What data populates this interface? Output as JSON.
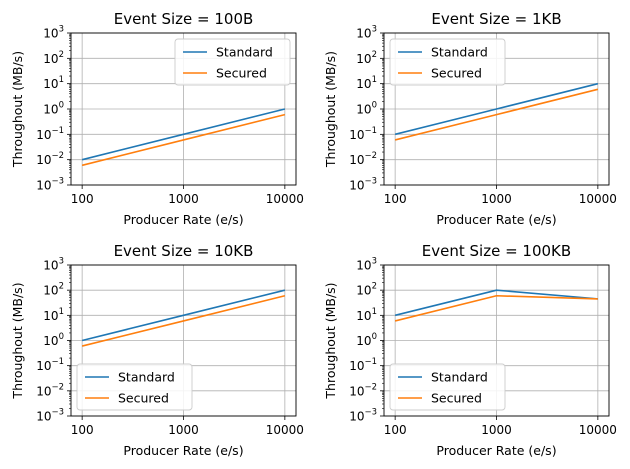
{
  "colors": {
    "standard": "#1f77b4",
    "secured": "#ff7f0e",
    "grid": "#b0b0b0"
  },
  "chart_data": [
    {
      "type": "line",
      "title": "Event Size = 100B",
      "xlabel": "Producer Rate (e/s)",
      "ylabel": "Throughout (MB/s)",
      "x": [
        100,
        1000,
        10000
      ],
      "xscale": "log",
      "yscale": "log",
      "ylim": [
        0.001,
        1000
      ],
      "grid": true,
      "legend": "upper right",
      "series": [
        {
          "name": "Standard",
          "values": [
            0.01,
            0.1,
            1
          ]
        },
        {
          "name": "Secured",
          "values": [
            0.006,
            0.06,
            0.6
          ]
        }
      ]
    },
    {
      "type": "line",
      "title": "Event Size = 1KB",
      "xlabel": "Producer Rate (e/s)",
      "ylabel": "Throughout (MB/s)",
      "x": [
        100,
        1000,
        10000
      ],
      "xscale": "log",
      "yscale": "log",
      "ylim": [
        0.001,
        1000
      ],
      "grid": true,
      "legend": "upper left",
      "series": [
        {
          "name": "Standard",
          "values": [
            0.1,
            1,
            10
          ]
        },
        {
          "name": "Secured",
          "values": [
            0.06,
            0.6,
            6
          ]
        }
      ]
    },
    {
      "type": "line",
      "title": "Event Size = 10KB",
      "xlabel": "Producer Rate (e/s)",
      "ylabel": "Throughout (MB/s)",
      "x": [
        100,
        1000,
        10000
      ],
      "xscale": "log",
      "yscale": "log",
      "ylim": [
        0.001,
        1000
      ],
      "grid": true,
      "legend": "lower left",
      "series": [
        {
          "name": "Standard",
          "values": [
            1,
            10,
            100
          ]
        },
        {
          "name": "Secured",
          "values": [
            0.6,
            6,
            60
          ]
        }
      ]
    },
    {
      "type": "line",
      "title": "Event Size = 100KB",
      "xlabel": "Producer Rate (e/s)",
      "ylabel": "Throughout (MB/s)",
      "x": [
        100,
        1000,
        10000
      ],
      "xscale": "log",
      "yscale": "log",
      "ylim": [
        0.001,
        1000
      ],
      "grid": true,
      "legend": "lower left",
      "series": [
        {
          "name": "Standard",
          "values": [
            10,
            100,
            45
          ]
        },
        {
          "name": "Secured",
          "values": [
            6,
            60,
            45
          ]
        }
      ]
    }
  ]
}
